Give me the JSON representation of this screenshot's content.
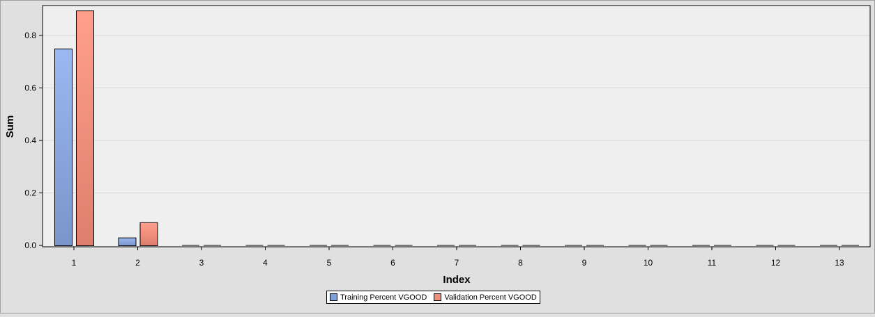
{
  "chart_data": {
    "type": "bar",
    "title": "",
    "xlabel": "Index",
    "ylabel": "Sum",
    "categories": [
      "1",
      "2",
      "3",
      "4",
      "5",
      "6",
      "7",
      "8",
      "9",
      "10",
      "11",
      "12",
      "13"
    ],
    "ylim": [
      0,
      0.92
    ],
    "yticks": [
      "0.0",
      "0.2",
      "0.4",
      "0.6",
      "0.8"
    ],
    "ytick_values": [
      0,
      0.2,
      0.4,
      0.6,
      0.8
    ],
    "grid": true,
    "legend_placement": "bottom-center",
    "series": [
      {
        "name": "Training Percent VGOOD",
        "color": "#7f9fd6",
        "values": [
          0.75,
          0.03,
          0,
          0,
          0,
          0,
          0,
          0,
          0,
          0,
          0,
          0,
          0
        ]
      },
      {
        "name": "Validation Percent VGOOD",
        "color": "#ee8f7c",
        "values": [
          0.895,
          0.088,
          0,
          0,
          0,
          0,
          0,
          0,
          0,
          0,
          0,
          0,
          0
        ]
      }
    ]
  },
  "colors": {
    "background": "#e0e0e0",
    "plot_background": "#efefef",
    "gridline": "#d9d9d9"
  }
}
